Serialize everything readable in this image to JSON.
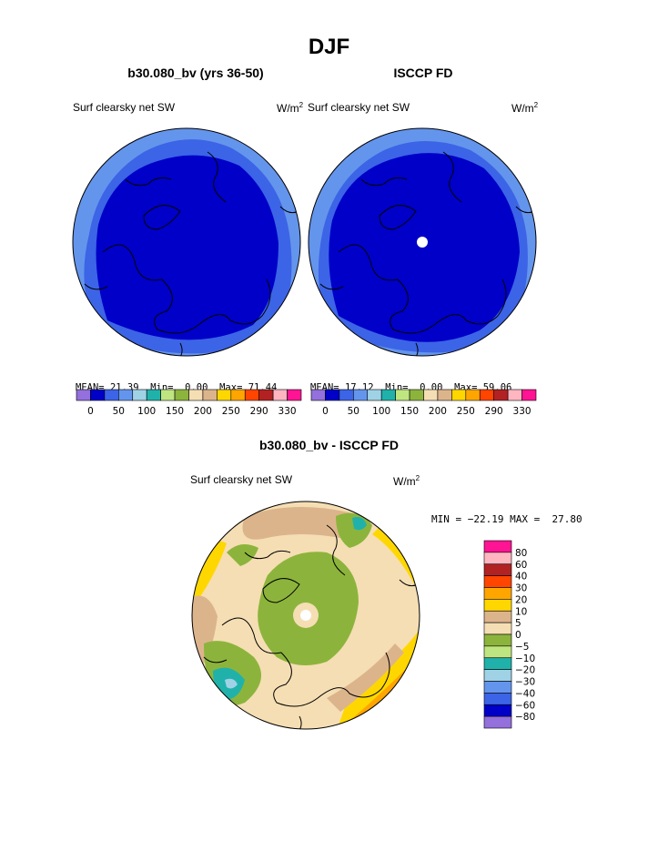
{
  "page": {
    "season_title": "DJF",
    "diff_title": "b30.080_bv - ISCCP FD"
  },
  "panels": [
    {
      "case_title": "b30.080_bv (yrs 36-50)",
      "variable_label": "Surf clearsky net SW",
      "units_label": "W/m",
      "units_sup": "2",
      "stats": {
        "mean_label": "MEAN=",
        "mean": "21.39",
        "min_label": "Min=",
        "min": "0.00",
        "max_label": "Max=",
        "max": "71.44"
      }
    },
    {
      "case_title": "ISCCP FD",
      "variable_label": "Surf clearsky net SW",
      "units_label": "W/m",
      "units_sup": "2",
      "stats": {
        "mean_label": "MEAN=",
        "mean": "17.12",
        "min_label": "Min=",
        "min": "0.00",
        "max_label": "Max=",
        "max": "59.06"
      }
    },
    {
      "variable_label": "Surf clearsky net SW",
      "units_label": "W/m",
      "units_sup": "2",
      "stats_text": "MIN = −22.19 MAX =  27.80"
    }
  ],
  "chart_data": [
    {
      "type": "heatmap",
      "title": "b30.080_bv (yrs 36-50)",
      "projection": "north polar stereographic",
      "field": "Surf clearsky net SW",
      "units": "W/m2",
      "colorbar": {
        "orientation": "horizontal",
        "tick_labels": [
          "0",
          "50",
          "100",
          "150",
          "200",
          "250",
          "290",
          "330"
        ],
        "colors": [
          "#9370db",
          "#0000c8",
          "#3c64e6",
          "#6495ed",
          "#a0d2e6",
          "#20b2aa",
          "#bfe580",
          "#8cb43c",
          "#f5deb3",
          "#dcb48c",
          "#ffd700",
          "#ffa500",
          "#ff4500",
          "#b22222",
          "#ffb6c1",
          "#ff1493"
        ]
      },
      "stats": {
        "mean": 21.39,
        "min": 0.0,
        "max": 71.44
      }
    },
    {
      "type": "heatmap",
      "title": "ISCCP FD",
      "projection": "north polar stereographic",
      "field": "Surf clearsky net SW",
      "units": "W/m2",
      "colorbar": {
        "orientation": "horizontal",
        "tick_labels": [
          "0",
          "50",
          "100",
          "150",
          "200",
          "250",
          "290",
          "330"
        ],
        "colors": [
          "#9370db",
          "#0000c8",
          "#3c64e6",
          "#6495ed",
          "#a0d2e6",
          "#20b2aa",
          "#bfe580",
          "#8cb43c",
          "#f5deb3",
          "#dcb48c",
          "#ffd700",
          "#ffa500",
          "#ff4500",
          "#b22222",
          "#ffb6c1",
          "#ff1493"
        ]
      },
      "stats": {
        "mean": 17.12,
        "min": 0.0,
        "max": 59.06
      }
    },
    {
      "type": "heatmap",
      "title": "b30.080_bv - ISCCP FD",
      "projection": "north polar stereographic",
      "field": "Surf clearsky net SW",
      "units": "W/m2",
      "colorbar": {
        "orientation": "vertical",
        "tick_labels": [
          "80",
          "60",
          "40",
          "30",
          "20",
          "10",
          "5",
          "0",
          "−5",
          "−10",
          "−20",
          "−30",
          "−40",
          "−60",
          "−80"
        ],
        "colors": [
          "#ff1493",
          "#ffb6c1",
          "#b22222",
          "#ff4500",
          "#ffa500",
          "#ffd700",
          "#dcb48c",
          "#f5deb3",
          "#8cb43c",
          "#bfe580",
          "#20b2aa",
          "#a0d2e6",
          "#6495ed",
          "#3c64e6",
          "#0000c8",
          "#9370db"
        ]
      },
      "stats": {
        "min": -22.19,
        "max": 27.8
      }
    }
  ]
}
